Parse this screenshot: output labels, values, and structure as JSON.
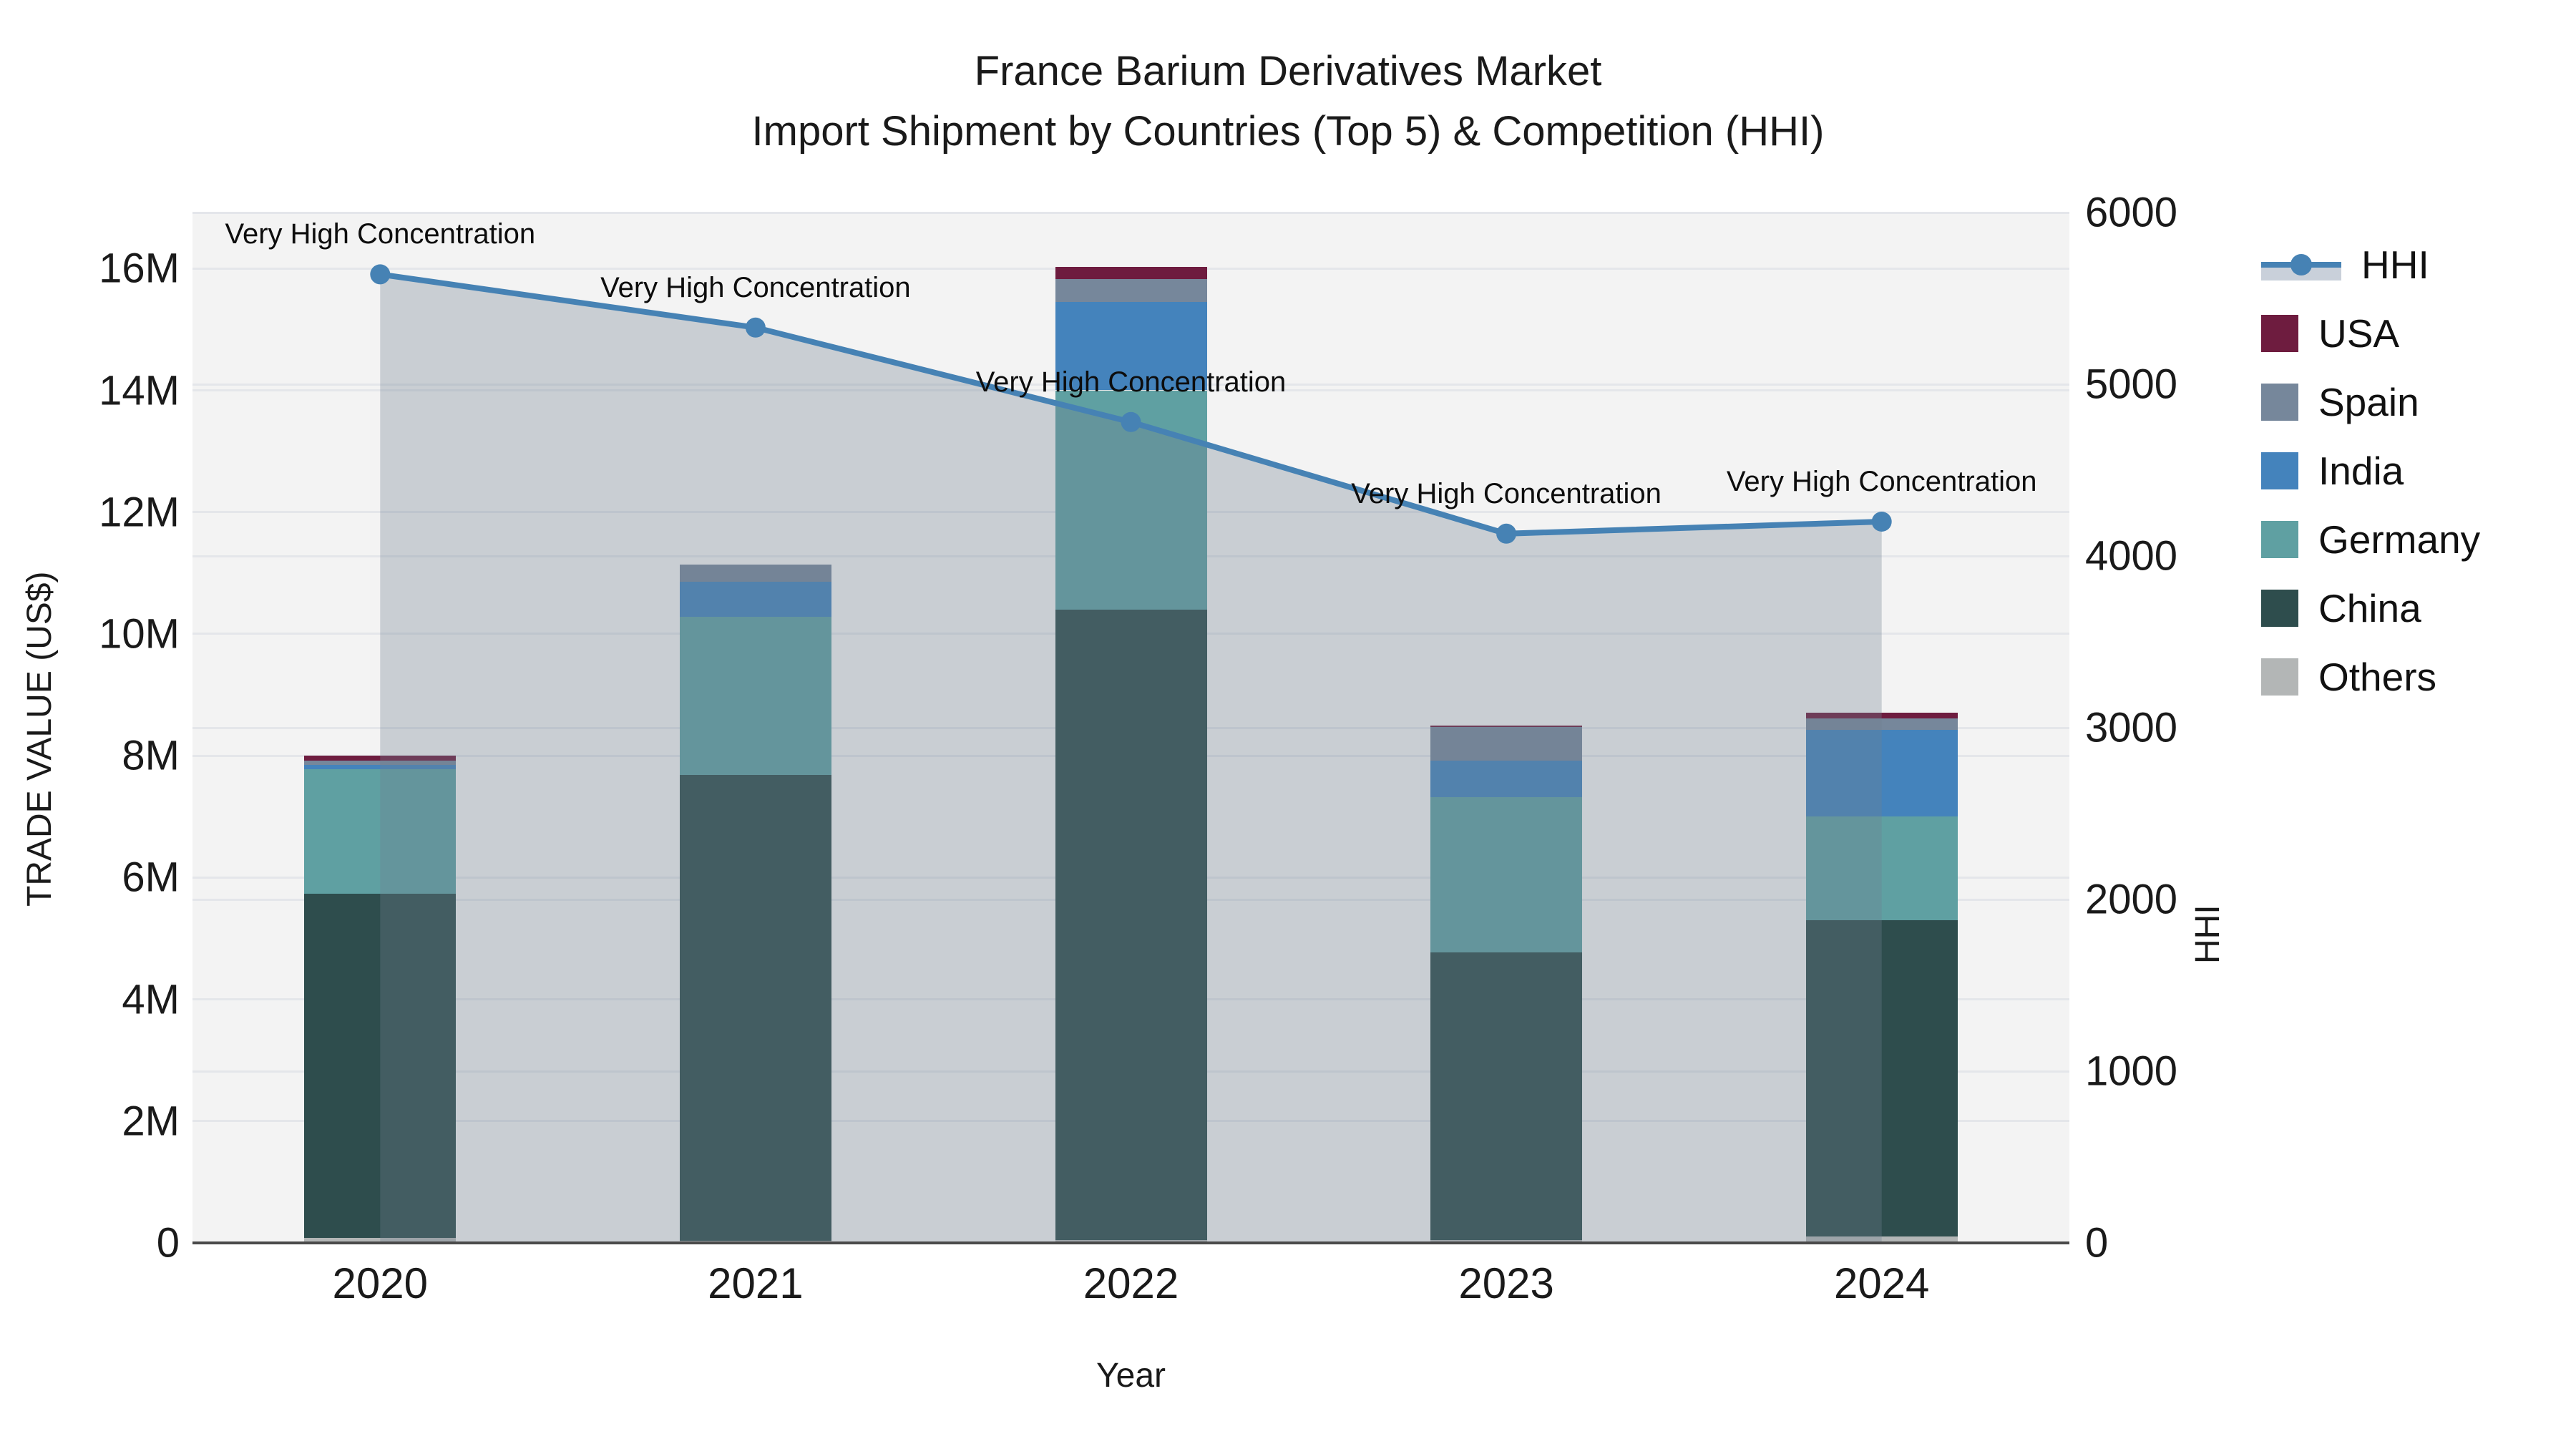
{
  "title": {
    "line1": "France Barium Derivatives Market",
    "line2": "Import Shipment by Countries (Top 5) & Competition (HHI)"
  },
  "axes": {
    "x_label": "Year",
    "y_left_label": "TRADE VALUE (US$)",
    "y_right_label": "HHI",
    "y_left_ticks": [
      "0",
      "2M",
      "4M",
      "6M",
      "8M",
      "10M",
      "12M",
      "14M",
      "16M"
    ],
    "y_right_ticks": [
      "0",
      "1000",
      "2000",
      "3000",
      "4000",
      "5000",
      "6000"
    ]
  },
  "chart_data": {
    "type": "bar+line",
    "categories": [
      "2020",
      "2021",
      "2022",
      "2023",
      "2024"
    ],
    "stack_order_bottom_to_top": [
      "Others",
      "China",
      "Germany",
      "India",
      "Spain",
      "USA"
    ],
    "series": [
      {
        "name": "Others",
        "color": "#b3b6b6",
        "values": [
          80000,
          30000,
          50000,
          50000,
          100000
        ]
      },
      {
        "name": "China",
        "color": "#2e4d4d",
        "values": [
          5650000,
          7650000,
          10350000,
          4720000,
          5200000
        ]
      },
      {
        "name": "Germany",
        "color": "#5fa0a2",
        "values": [
          2050000,
          2600000,
          3600000,
          2550000,
          1700000
        ]
      },
      {
        "name": "India",
        "color": "#4483bc",
        "values": [
          70000,
          580000,
          1450000,
          600000,
          1430000
        ]
      },
      {
        "name": "Spain",
        "color": "#76879b",
        "values": [
          70000,
          280000,
          380000,
          550000,
          180000
        ]
      },
      {
        "name": "USA",
        "color": "#6e1c3f",
        "values": [
          80000,
          0,
          200000,
          30000,
          100000
        ]
      }
    ],
    "line": {
      "name": "HHI",
      "color": "#4682b4",
      "area_fill": "rgba(112,128,144,0.32)",
      "axis": "right",
      "values": [
        5640,
        5330,
        4780,
        4130,
        4200
      ]
    },
    "annotations": [
      {
        "year": "2020",
        "text": "Very High Concentration"
      },
      {
        "year": "2021",
        "text": "Very High Concentration"
      },
      {
        "year": "2022",
        "text": "Very High Concentration"
      },
      {
        "year": "2023",
        "text": "Very High Concentration"
      },
      {
        "year": "2024",
        "text": "Very High Concentration"
      }
    ],
    "left_axis": {
      "min": 0,
      "tick_step": 2000000,
      "tick_max": 16000000,
      "top_value": 16920000
    },
    "right_axis": {
      "min": 0,
      "tick_step": 1000,
      "tick_max": 6000,
      "top_value": 6000
    },
    "plot_bg": "#f3f3f3",
    "grid_on": true,
    "legend_position": "right"
  },
  "legend": {
    "items": [
      {
        "label": "HHI",
        "type": "line",
        "color": "#4682b4",
        "band": "#c9d0da"
      },
      {
        "label": "USA",
        "type": "box",
        "color": "#6e1c3f"
      },
      {
        "label": "Spain",
        "type": "box",
        "color": "#76879b"
      },
      {
        "label": "India",
        "type": "box",
        "color": "#4483bc"
      },
      {
        "label": "Germany",
        "type": "box",
        "color": "#5fa0a2"
      },
      {
        "label": "China",
        "type": "box",
        "color": "#2e4d4d"
      },
      {
        "label": "Others",
        "type": "box",
        "color": "#b3b6b6"
      }
    ]
  }
}
